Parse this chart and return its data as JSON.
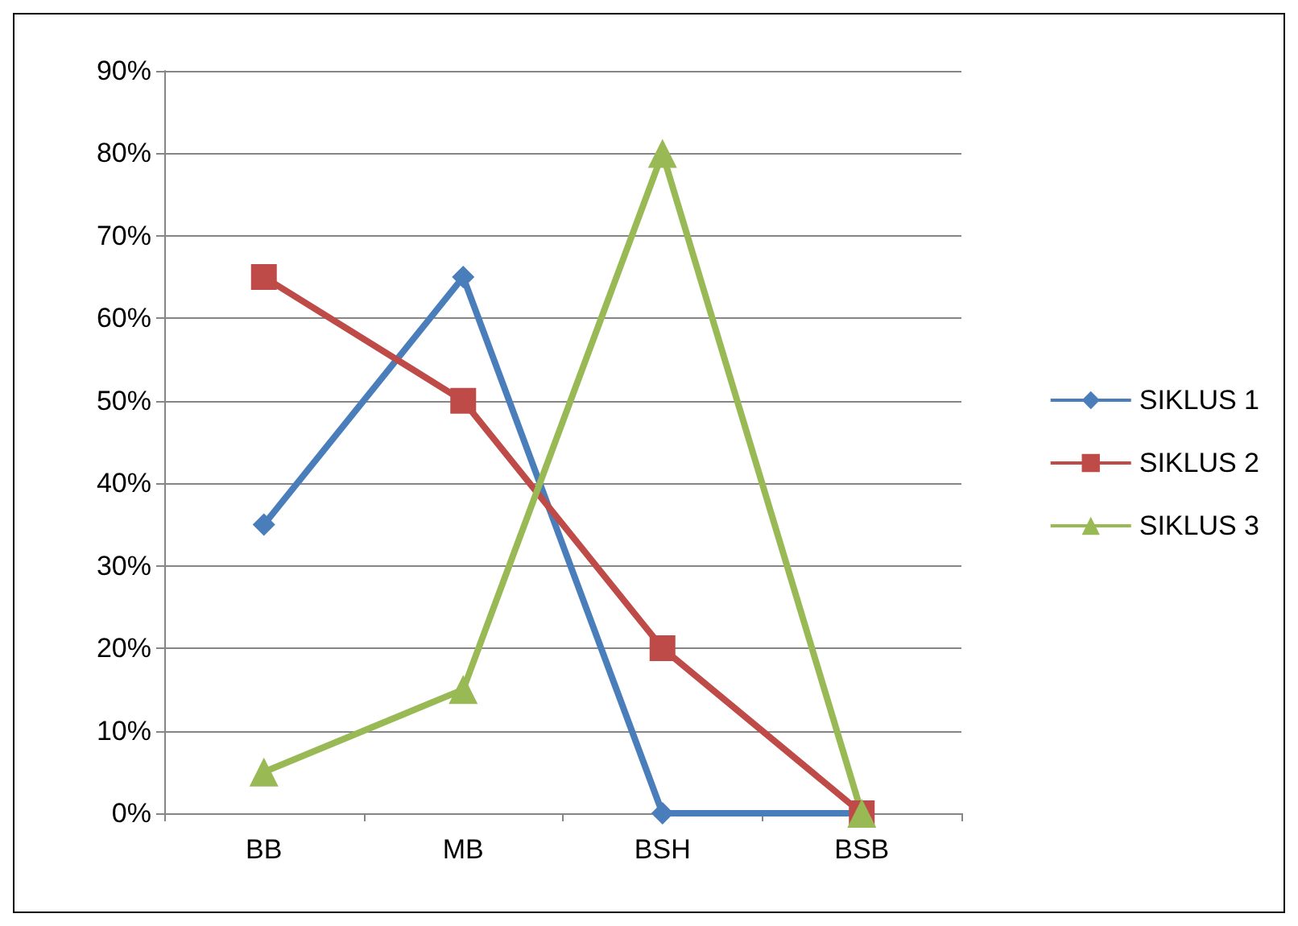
{
  "chart_data": {
    "type": "line",
    "categories": [
      "BB",
      "MB",
      "BSH",
      "BSB"
    ],
    "series": [
      {
        "name": "SIKLUS 1",
        "color": "#4a7ebb",
        "marker": "diamond",
        "values": [
          35,
          65,
          0,
          0
        ]
      },
      {
        "name": "SIKLUS 2",
        "color": "#be4b48",
        "marker": "square",
        "values": [
          65,
          50,
          20,
          0
        ]
      },
      {
        "name": "SIKLUS 3",
        "color": "#98b954",
        "marker": "triangle",
        "values": [
          5,
          15,
          80,
          0
        ]
      }
    ],
    "ylim": [
      0,
      90
    ],
    "yticks": [
      {
        "value": 0,
        "label": "0%"
      },
      {
        "value": 10,
        "label": "10%"
      },
      {
        "value": 20,
        "label": "20%"
      },
      {
        "value": 30,
        "label": "30%"
      },
      {
        "value": 40,
        "label": "40%"
      },
      {
        "value": 50,
        "label": "50%"
      },
      {
        "value": 60,
        "label": "60%"
      },
      {
        "value": 70,
        "label": "70%"
      },
      {
        "value": 80,
        "label": "80%"
      },
      {
        "value": 90,
        "label": "90%"
      }
    ],
    "grid": "y",
    "legend": "right",
    "line_style": "solid"
  }
}
